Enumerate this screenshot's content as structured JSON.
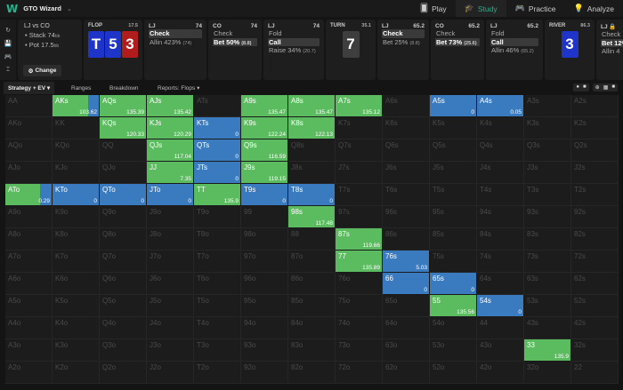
{
  "app": {
    "logo": "W",
    "title": "GTO Wizard",
    "chevron": "⌄"
  },
  "nav": [
    {
      "label": "Play",
      "icon": "cards-icon",
      "glyph": "🂠",
      "active": false
    },
    {
      "label": "Study",
      "icon": "graduation-cap-icon",
      "glyph": "🎓",
      "active": true
    },
    {
      "label": "Practice",
      "icon": "gamepad-icon",
      "glyph": "🎮",
      "active": false
    },
    {
      "label": "Analyze",
      "icon": "lightbulb-icon",
      "glyph": "💡",
      "active": false
    }
  ],
  "side_icons": [
    "↻",
    "💾",
    "🎮",
    "⌶"
  ],
  "info": {
    "title": "LJ vs CO",
    "stack_label": "• Stack 74",
    "stack_unit": "bb",
    "pot_label": "• Pot 17.5",
    "pot_unit": "bb",
    "change_label": "Change",
    "change_icon": "⚙"
  },
  "edit_icons": [
    "✎",
    "ⓘ"
  ],
  "flop": {
    "label": "FLOP",
    "pot": "17.5",
    "cards": [
      {
        "rank": "T",
        "color": "blue"
      },
      {
        "rank": "5",
        "color": "blue"
      },
      {
        "rank": "3",
        "color": "red"
      }
    ]
  },
  "turn": {
    "label": "TURN",
    "pot": "35.1",
    "cards": [
      {
        "rank": "7",
        "color": "gray"
      }
    ]
  },
  "river": {
    "label": "RIVER",
    "pot": "86.3",
    "cards": [
      {
        "rank": "3",
        "color": "blue"
      }
    ]
  },
  "actions": [
    {
      "player": "LJ",
      "stack": "74",
      "options": [
        {
          "label": "Check",
          "sel": true,
          "extra": ""
        },
        {
          "label": "Allin 423%",
          "sel": false,
          "extra": "(74)"
        }
      ]
    },
    {
      "player": "CO",
      "stack": "74",
      "options": [
        {
          "label": "Check",
          "sel": false,
          "extra": ""
        },
        {
          "label": "Bet 50%",
          "sel": true,
          "extra": "(8.8)"
        }
      ]
    },
    {
      "player": "LJ",
      "stack": "74",
      "options": [
        {
          "label": "Fold",
          "sel": false,
          "extra": ""
        },
        {
          "label": "Call",
          "sel": true,
          "extra": ""
        },
        {
          "label": "Raise 34%",
          "sel": false,
          "extra": "(20.7)"
        }
      ]
    },
    {
      "player": "LJ",
      "stack": "65.2",
      "options": [
        {
          "label": "Check",
          "sel": true,
          "extra": ""
        },
        {
          "label": "Bet 25%",
          "sel": false,
          "extra": "(8.8)"
        }
      ]
    },
    {
      "player": "CO",
      "stack": "65.2",
      "options": [
        {
          "label": "Check",
          "sel": false,
          "extra": ""
        },
        {
          "label": "Bet 73%",
          "sel": true,
          "extra": "(25.6)"
        }
      ]
    },
    {
      "player": "LJ",
      "stack": "65.2",
      "options": [
        {
          "label": "Fold",
          "sel": false,
          "extra": ""
        },
        {
          "label": "Call",
          "sel": true,
          "extra": ""
        },
        {
          "label": "Allin 46%",
          "sel": false,
          "extra": "(65.2)"
        }
      ]
    },
    {
      "player": "LJ 🔒",
      "stack": "",
      "options": [
        {
          "label": "Check",
          "sel": false,
          "extra": ""
        },
        {
          "label": "Bet 12%",
          "sel": true,
          "extra": ""
        },
        {
          "label": "Allin 4",
          "sel": false,
          "extra": ""
        }
      ]
    }
  ],
  "tabs": [
    {
      "label": "Strategy + EV  ▾",
      "active": true
    },
    {
      "label": "Ranges",
      "active": false
    },
    {
      "label": "Breakdown",
      "active": false
    },
    {
      "label": "Reports: Flops  ▾",
      "active": false
    }
  ],
  "tool_icons": [
    [
      "●",
      "■"
    ],
    [
      "⊕",
      "▦",
      "■"
    ]
  ],
  "colors": {
    "green": "#5bbb5f",
    "blue": "#3a7bc0",
    "off_text": "#4a4a4a",
    "bg": "#141414"
  },
  "grid": {
    "rows": [
      [
        [
          "AA",
          0,
          0,
          ""
        ],
        [
          "AKs",
          0.77,
          0.23,
          "103.62"
        ],
        [
          "AQs",
          1,
          0,
          "135.39"
        ],
        [
          "AJs",
          1,
          0,
          "135.42"
        ],
        [
          "ATs",
          0,
          0,
          ""
        ],
        [
          "A9s",
          1,
          0,
          "135.47"
        ],
        [
          "A8s",
          1,
          0,
          "135.47"
        ],
        [
          "A7s",
          1,
          0,
          "135.12"
        ],
        [
          "A6s",
          0,
          0,
          ""
        ],
        [
          "A5s",
          0,
          1,
          "0"
        ],
        [
          "A4s",
          0,
          1,
          "0.05"
        ],
        [
          "A3s",
          0,
          0,
          ""
        ],
        [
          "A2s",
          0,
          0,
          ""
        ]
      ],
      [
        [
          "AKo",
          0,
          0,
          ""
        ],
        [
          "KK",
          0,
          0,
          ""
        ],
        [
          "KQs",
          1,
          0,
          "120.33"
        ],
        [
          "KJs",
          1,
          0,
          "120.29"
        ],
        [
          "KTs",
          0,
          1,
          "0"
        ],
        [
          "K9s",
          1,
          0,
          "122.24"
        ],
        [
          "K8s",
          1,
          0,
          "122.13"
        ],
        [
          "K7s",
          0,
          0,
          ""
        ],
        [
          "K6s",
          0,
          0,
          ""
        ],
        [
          "K5s",
          0,
          0,
          ""
        ],
        [
          "K4s",
          0,
          0,
          ""
        ],
        [
          "K3s",
          0,
          0,
          ""
        ],
        [
          "K2s",
          0,
          0,
          ""
        ]
      ],
      [
        [
          "AQo",
          0,
          0,
          ""
        ],
        [
          "KQo",
          0,
          0,
          ""
        ],
        [
          "QQ",
          0,
          0,
          ""
        ],
        [
          "QJs",
          1,
          0,
          "117.04"
        ],
        [
          "QTs",
          0,
          1,
          "0"
        ],
        [
          "Q9s",
          1,
          0,
          "116.59"
        ],
        [
          "Q8s",
          0,
          0,
          ""
        ],
        [
          "Q7s",
          0,
          0,
          ""
        ],
        [
          "Q6s",
          0,
          0,
          ""
        ],
        [
          "Q5s",
          0,
          0,
          ""
        ],
        [
          "Q4s",
          0,
          0,
          ""
        ],
        [
          "Q3s",
          0,
          0,
          ""
        ],
        [
          "Q2s",
          0,
          0,
          ""
        ]
      ],
      [
        [
          "AJo",
          0,
          0,
          ""
        ],
        [
          "KJo",
          0,
          0,
          ""
        ],
        [
          "QJo",
          0,
          0,
          ""
        ],
        [
          "JJ",
          1,
          0,
          "7.35"
        ],
        [
          "JTs",
          0,
          1,
          "0"
        ],
        [
          "J9s",
          1,
          0,
          "119.15"
        ],
        [
          "J8s",
          0,
          0,
          ""
        ],
        [
          "J7s",
          0,
          0,
          ""
        ],
        [
          "J6s",
          0,
          0,
          ""
        ],
        [
          "J5s",
          0,
          0,
          ""
        ],
        [
          "J4s",
          0,
          0,
          ""
        ],
        [
          "J3s",
          0,
          0,
          ""
        ],
        [
          "J2s",
          0,
          0,
          ""
        ]
      ],
      [
        [
          "ATo",
          0.75,
          0.25,
          "0.29"
        ],
        [
          "KTo",
          0,
          1,
          "0"
        ],
        [
          "QTo",
          0,
          1,
          "0"
        ],
        [
          "JTo",
          0,
          1,
          "0"
        ],
        [
          "TT",
          1,
          0,
          "135.9"
        ],
        [
          "T9s",
          0,
          1,
          "0"
        ],
        [
          "T8s",
          0,
          1,
          "0"
        ],
        [
          "T7s",
          0,
          0,
          ""
        ],
        [
          "T6s",
          0,
          0,
          ""
        ],
        [
          "T5s",
          0,
          0,
          ""
        ],
        [
          "T4s",
          0,
          0,
          ""
        ],
        [
          "T3s",
          0,
          0,
          ""
        ],
        [
          "T2s",
          0,
          0,
          ""
        ]
      ],
      [
        [
          "A9o",
          0,
          0,
          ""
        ],
        [
          "K9o",
          0,
          0,
          ""
        ],
        [
          "Q9o",
          0,
          0,
          ""
        ],
        [
          "J9o",
          0,
          0,
          ""
        ],
        [
          "T9o",
          0,
          0,
          ""
        ],
        [
          "99",
          0,
          0,
          ""
        ],
        [
          "98s",
          1,
          0,
          "117.48"
        ],
        [
          "97s",
          0,
          0,
          ""
        ],
        [
          "96s",
          0,
          0,
          ""
        ],
        [
          "95s",
          0,
          0,
          ""
        ],
        [
          "94s",
          0,
          0,
          ""
        ],
        [
          "93s",
          0,
          0,
          ""
        ],
        [
          "92s",
          0,
          0,
          ""
        ]
      ],
      [
        [
          "A8o",
          0,
          0,
          ""
        ],
        [
          "K8o",
          0,
          0,
          ""
        ],
        [
          "Q8o",
          0,
          0,
          ""
        ],
        [
          "J8o",
          0,
          0,
          ""
        ],
        [
          "T8o",
          0,
          0,
          ""
        ],
        [
          "98o",
          0,
          0,
          ""
        ],
        [
          "88",
          0,
          0,
          ""
        ],
        [
          "87s",
          1,
          0,
          "119.66"
        ],
        [
          "86s",
          0,
          0,
          ""
        ],
        [
          "85s",
          0,
          0,
          ""
        ],
        [
          "84s",
          0,
          0,
          ""
        ],
        [
          "83s",
          0,
          0,
          ""
        ],
        [
          "82s",
          0,
          0,
          ""
        ]
      ],
      [
        [
          "A7o",
          0,
          0,
          ""
        ],
        [
          "K7o",
          0,
          0,
          ""
        ],
        [
          "Q7o",
          0,
          0,
          ""
        ],
        [
          "J7o",
          0,
          0,
          ""
        ],
        [
          "T7o",
          0,
          0,
          ""
        ],
        [
          "97o",
          0,
          0,
          ""
        ],
        [
          "87o",
          0,
          0,
          ""
        ],
        [
          "77",
          1,
          0,
          "135.89"
        ],
        [
          "76s",
          0,
          1,
          "5.03"
        ],
        [
          "75s",
          0,
          0,
          ""
        ],
        [
          "74s",
          0,
          0,
          ""
        ],
        [
          "73s",
          0,
          0,
          ""
        ],
        [
          "72s",
          0,
          0,
          ""
        ]
      ],
      [
        [
          "A6o",
          0,
          0,
          ""
        ],
        [
          "K6o",
          0,
          0,
          ""
        ],
        [
          "Q6o",
          0,
          0,
          ""
        ],
        [
          "J6o",
          0,
          0,
          ""
        ],
        [
          "T6o",
          0,
          0,
          ""
        ],
        [
          "96o",
          0,
          0,
          ""
        ],
        [
          "86o",
          0,
          0,
          ""
        ],
        [
          "76o",
          0,
          0,
          ""
        ],
        [
          "66",
          0,
          1,
          "0"
        ],
        [
          "65s",
          0,
          1,
          "0"
        ],
        [
          "64s",
          0,
          0,
          ""
        ],
        [
          "63s",
          0,
          0,
          ""
        ],
        [
          "62s",
          0,
          0,
          ""
        ]
      ],
      [
        [
          "A5o",
          0,
          0,
          ""
        ],
        [
          "K5o",
          0,
          0,
          ""
        ],
        [
          "Q5o",
          0,
          0,
          ""
        ],
        [
          "J5o",
          0,
          0,
          ""
        ],
        [
          "T5o",
          0,
          0,
          ""
        ],
        [
          "95o",
          0,
          0,
          ""
        ],
        [
          "85o",
          0,
          0,
          ""
        ],
        [
          "75o",
          0,
          0,
          ""
        ],
        [
          "65o",
          0,
          0,
          ""
        ],
        [
          "55",
          1,
          0,
          "135.56"
        ],
        [
          "54s",
          0,
          1,
          "0"
        ],
        [
          "53s",
          0,
          0,
          ""
        ],
        [
          "52s",
          0,
          0,
          ""
        ]
      ],
      [
        [
          "A4o",
          0,
          0,
          ""
        ],
        [
          "K4o",
          0,
          0,
          ""
        ],
        [
          "Q4o",
          0,
          0,
          ""
        ],
        [
          "J4o",
          0,
          0,
          ""
        ],
        [
          "T4o",
          0,
          0,
          ""
        ],
        [
          "94o",
          0,
          0,
          ""
        ],
        [
          "84o",
          0,
          0,
          ""
        ],
        [
          "74o",
          0,
          0,
          ""
        ],
        [
          "64o",
          0,
          0,
          ""
        ],
        [
          "54o",
          0,
          0,
          ""
        ],
        [
          "44",
          0,
          0,
          ""
        ],
        [
          "43s",
          0,
          0,
          ""
        ],
        [
          "42s",
          0,
          0,
          ""
        ]
      ],
      [
        [
          "A3o",
          0,
          0,
          ""
        ],
        [
          "K3o",
          0,
          0,
          ""
        ],
        [
          "Q3o",
          0,
          0,
          ""
        ],
        [
          "J3o",
          0,
          0,
          ""
        ],
        [
          "T3o",
          0,
          0,
          ""
        ],
        [
          "93o",
          0,
          0,
          ""
        ],
        [
          "83o",
          0,
          0,
          ""
        ],
        [
          "73o",
          0,
          0,
          ""
        ],
        [
          "63o",
          0,
          0,
          ""
        ],
        [
          "53o",
          0,
          0,
          ""
        ],
        [
          "43o",
          0,
          0,
          ""
        ],
        [
          "33",
          1,
          0,
          "135.9"
        ],
        [
          "32s",
          0,
          0,
          ""
        ]
      ],
      [
        [
          "A2o",
          0,
          0,
          ""
        ],
        [
          "K2o",
          0,
          0,
          ""
        ],
        [
          "Q2o",
          0,
          0,
          ""
        ],
        [
          "J2o",
          0,
          0,
          ""
        ],
        [
          "T2o",
          0,
          0,
          ""
        ],
        [
          "92o",
          0,
          0,
          ""
        ],
        [
          "82o",
          0,
          0,
          ""
        ],
        [
          "72o",
          0,
          0,
          ""
        ],
        [
          "62o",
          0,
          0,
          ""
        ],
        [
          "52o",
          0,
          0,
          ""
        ],
        [
          "42o",
          0,
          0,
          ""
        ],
        [
          "32o",
          0,
          0,
          ""
        ],
        [
          "22",
          0,
          0,
          ""
        ]
      ]
    ]
  }
}
